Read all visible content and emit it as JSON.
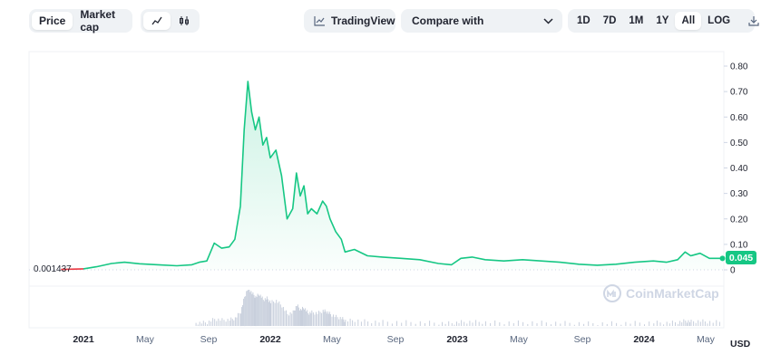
{
  "toolbar": {
    "view_tabs": [
      {
        "label": "Price",
        "active": true
      },
      {
        "label": "Market cap",
        "active": false
      }
    ],
    "chart_type_icons": [
      "line-chart-icon",
      "candlestick-icon"
    ],
    "tradingview_label": "TradingView",
    "compare_label": "Compare with",
    "ranges": [
      {
        "label": "1D",
        "active": false
      },
      {
        "label": "7D",
        "active": false
      },
      {
        "label": "1M",
        "active": false
      },
      {
        "label": "1Y",
        "active": false
      },
      {
        "label": "All",
        "active": true
      },
      {
        "label": "LOG",
        "active": false
      }
    ],
    "download_icon": "download-icon"
  },
  "chart": {
    "current_price_label": "0.045",
    "start_price_label": "0.001437",
    "currency_label": "USD",
    "watermark": "CoinMarketCap",
    "colors": {
      "line": "#16c784",
      "start_line": "#ea3943",
      "volume": "#c8cfdc",
      "grid": "#eff2f5"
    }
  },
  "chart_data": {
    "type": "area",
    "ylabel": "",
    "xlabel": "",
    "ylim": [
      0,
      0.8
    ],
    "y_ticks": [
      "0.80",
      "0.70",
      "0.60",
      "0.50",
      "0.40",
      "0.30",
      "0.20",
      "0.10",
      "0"
    ],
    "x_ticks": [
      {
        "label": "2021",
        "year": true,
        "t": 2021.0
      },
      {
        "label": "May",
        "year": false,
        "t": 2021.33
      },
      {
        "label": "Sep",
        "year": false,
        "t": 2021.67
      },
      {
        "label": "2022",
        "year": true,
        "t": 2022.0
      },
      {
        "label": "May",
        "year": false,
        "t": 2022.33
      },
      {
        "label": "Sep",
        "year": false,
        "t": 2022.67
      },
      {
        "label": "2023",
        "year": true,
        "t": 2023.0
      },
      {
        "label": "May",
        "year": false,
        "t": 2023.33
      },
      {
        "label": "Sep",
        "year": false,
        "t": 2023.67
      },
      {
        "label": "2024",
        "year": true,
        "t": 2024.0
      },
      {
        "label": "May",
        "year": false,
        "t": 2024.33
      }
    ],
    "grid": false,
    "series": [
      {
        "values": [
          [
            2020.88,
            0.0014
          ],
          [
            2021.0,
            0.004
          ],
          [
            2021.07,
            0.012
          ],
          [
            2021.15,
            0.025
          ],
          [
            2021.22,
            0.03
          ],
          [
            2021.3,
            0.024
          ],
          [
            2021.4,
            0.02
          ],
          [
            2021.5,
            0.016
          ],
          [
            2021.58,
            0.02
          ],
          [
            2021.62,
            0.03
          ],
          [
            2021.66,
            0.035
          ],
          [
            2021.7,
            0.105
          ],
          [
            2021.74,
            0.085
          ],
          [
            2021.78,
            0.09
          ],
          [
            2021.81,
            0.12
          ],
          [
            2021.84,
            0.25
          ],
          [
            2021.86,
            0.55
          ],
          [
            2021.88,
            0.74
          ],
          [
            2021.9,
            0.62
          ],
          [
            2021.92,
            0.55
          ],
          [
            2021.94,
            0.6
          ],
          [
            2021.96,
            0.49
          ],
          [
            2021.98,
            0.52
          ],
          [
            2022.0,
            0.44
          ],
          [
            2022.03,
            0.47
          ],
          [
            2022.06,
            0.37
          ],
          [
            2022.09,
            0.2
          ],
          [
            2022.12,
            0.24
          ],
          [
            2022.14,
            0.38
          ],
          [
            2022.16,
            0.29
          ],
          [
            2022.18,
            0.33
          ],
          [
            2022.2,
            0.22
          ],
          [
            2022.22,
            0.24
          ],
          [
            2022.25,
            0.22
          ],
          [
            2022.28,
            0.27
          ],
          [
            2022.3,
            0.25
          ],
          [
            2022.32,
            0.2
          ],
          [
            2022.35,
            0.15
          ],
          [
            2022.38,
            0.12
          ],
          [
            2022.4,
            0.07
          ],
          [
            2022.45,
            0.08
          ],
          [
            2022.52,
            0.055
          ],
          [
            2022.6,
            0.05
          ],
          [
            2022.7,
            0.045
          ],
          [
            2022.8,
            0.04
          ],
          [
            2022.9,
            0.025
          ],
          [
            2022.97,
            0.02
          ],
          [
            2023.02,
            0.045
          ],
          [
            2023.08,
            0.05
          ],
          [
            2023.15,
            0.04
          ],
          [
            2023.25,
            0.035
          ],
          [
            2023.35,
            0.04
          ],
          [
            2023.45,
            0.035
          ],
          [
            2023.55,
            0.03
          ],
          [
            2023.65,
            0.022
          ],
          [
            2023.75,
            0.018
          ],
          [
            2023.85,
            0.022
          ],
          [
            2023.95,
            0.03
          ],
          [
            2024.05,
            0.035
          ],
          [
            2024.12,
            0.03
          ],
          [
            2024.18,
            0.04
          ],
          [
            2024.22,
            0.07
          ],
          [
            2024.25,
            0.055
          ],
          [
            2024.3,
            0.065
          ],
          [
            2024.35,
            0.045
          ],
          [
            2024.42,
            0.045
          ]
        ]
      }
    ]
  }
}
